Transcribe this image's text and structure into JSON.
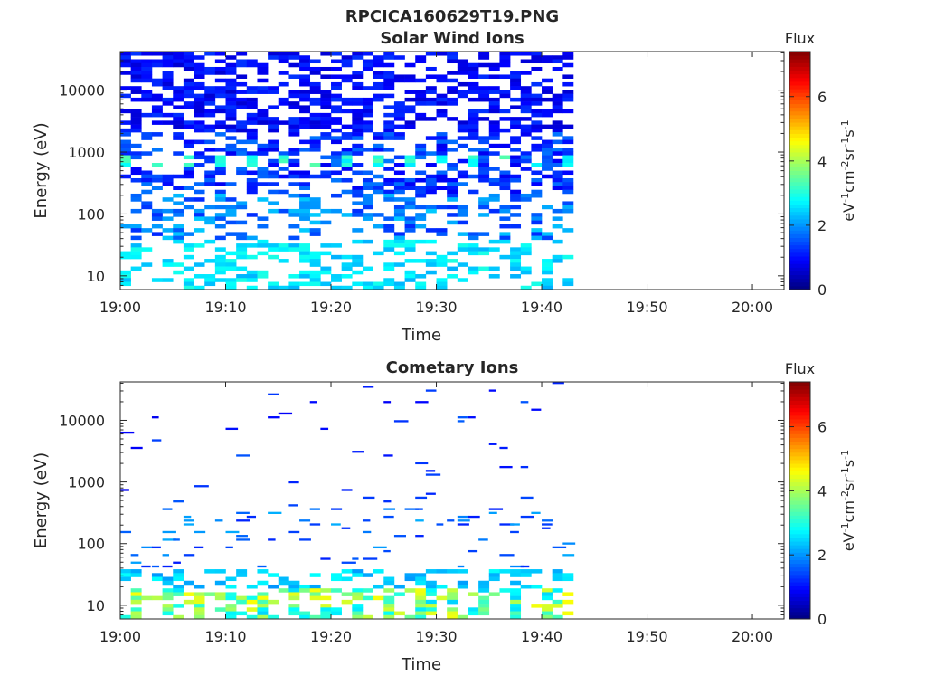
{
  "figure": {
    "title": "RPCICA160629T19.PNG"
  },
  "chart_data": [
    {
      "type": "heatmap",
      "title": "Solar Wind Ions",
      "xlabel": "Time",
      "ylabel": "Energy (eV)",
      "x_ticks": [
        "19:00",
        "19:10",
        "19:20",
        "19:30",
        "19:40",
        "19:50",
        "20:00"
      ],
      "x_range": [
        "19:00",
        "20:03"
      ],
      "data_end": "19:43",
      "y_scale": "log",
      "y_ticks": [
        10,
        100,
        1000,
        10000
      ],
      "y_range": [
        6,
        42000
      ],
      "grid": false,
      "colorbar": {
        "title": "Flux",
        "label": "eV-1cm-2sr-1s-1",
        "ticks": [
          0,
          2,
          4,
          6
        ],
        "range": [
          0,
          7.4
        ],
        "colormap": "jet"
      }
    },
    {
      "type": "heatmap",
      "title": "Cometary Ions",
      "xlabel": "Time",
      "ylabel": "Energy (eV)",
      "x_ticks": [
        "19:00",
        "19:10",
        "19:20",
        "19:30",
        "19:40",
        "19:50",
        "20:00"
      ],
      "x_range": [
        "19:00",
        "20:03"
      ],
      "data_end": "19:43",
      "y_scale": "log",
      "y_ticks": [
        10,
        100,
        1000,
        10000
      ],
      "y_range": [
        6,
        42000
      ],
      "grid": false,
      "colorbar": {
        "title": "Flux",
        "label": "eV-1cm-2sr-1s-1",
        "ticks": [
          0,
          2,
          4,
          6
        ],
        "range": [
          0,
          7.4
        ],
        "colormap": "jet"
      }
    }
  ]
}
